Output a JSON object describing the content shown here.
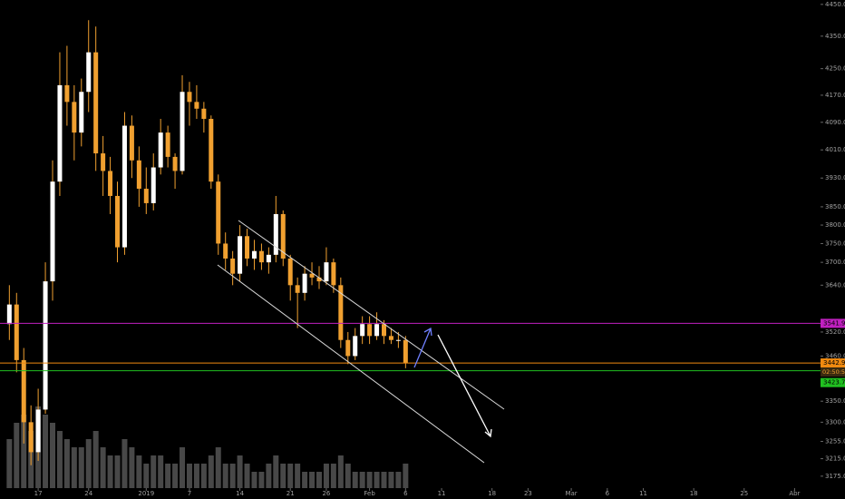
{
  "chart_data": {
    "type": "candlestick",
    "log_scale": true,
    "ylim": [
      3148,
      4464
    ],
    "yticks": [
      {
        "value": 4450,
        "label": "4450.0"
      },
      {
        "value": 4350,
        "label": "4350.0"
      },
      {
        "value": 4250,
        "label": "4250.0"
      },
      {
        "value": 4170,
        "label": "4170.0"
      },
      {
        "value": 4090,
        "label": "4090.0"
      },
      {
        "value": 4010,
        "label": "4010.0"
      },
      {
        "value": 3930,
        "label": "3930.0"
      },
      {
        "value": 3850,
        "label": "3850.0"
      },
      {
        "value": 3800,
        "label": "3800.0"
      },
      {
        "value": 3750,
        "label": "3750.0"
      },
      {
        "value": 3700,
        "label": "3700.0"
      },
      {
        "value": 3640,
        "label": "3640.0"
      },
      {
        "value": 3520,
        "label": "3520.0"
      },
      {
        "value": 3460,
        "label": "3460.0"
      },
      {
        "value": 3350,
        "label": "3350.0"
      },
      {
        "value": 3300,
        "label": "3300.0"
      },
      {
        "value": 3255,
        "label": "3255.0"
      },
      {
        "value": 3215,
        "label": "3215.0"
      },
      {
        "value": 3175,
        "label": "3175.0"
      }
    ],
    "xlim": [
      -5.3,
      108.6
    ],
    "xticks": [
      {
        "value": 0,
        "label": "17"
      },
      {
        "value": 7,
        "label": "24"
      },
      {
        "value": 15,
        "label": "2019"
      },
      {
        "value": 21,
        "label": "7"
      },
      {
        "value": 28,
        "label": "14"
      },
      {
        "value": 35,
        "label": "21"
      },
      {
        "value": 40,
        "label": "26"
      },
      {
        "value": 46,
        "label": "Feb"
      },
      {
        "value": 51,
        "label": "6"
      },
      {
        "value": 56,
        "label": "11"
      },
      {
        "value": 63,
        "label": "18"
      },
      {
        "value": 68,
        "label": "23"
      },
      {
        "value": 74,
        "label": "Mar"
      },
      {
        "value": 79,
        "label": "6"
      },
      {
        "value": 84,
        "label": "11"
      },
      {
        "value": 91,
        "label": "18"
      },
      {
        "value": 98,
        "label": "25"
      },
      {
        "value": 105,
        "label": "Abr"
      }
    ],
    "up_color": "#ffffff",
    "down_color": "#f0a030",
    "x": [
      -4,
      -3,
      -2,
      -1,
      0,
      1,
      2,
      3,
      4,
      5,
      6,
      7,
      8,
      9,
      10,
      11,
      12,
      13,
      14,
      15,
      16,
      17,
      18,
      19,
      20,
      21,
      22,
      23,
      24,
      25,
      26,
      27,
      28,
      29,
      30,
      31,
      32,
      33,
      34,
      35,
      36,
      37,
      38,
      39,
      40,
      41,
      42,
      43,
      44,
      45,
      46,
      47,
      48,
      49,
      50,
      51
    ],
    "open": [
      3540,
      3590,
      3450,
      3300,
      3230,
      3330,
      3650,
      3920,
      4200,
      4150,
      4060,
      4180,
      4300,
      4000,
      3950,
      3880,
      3740,
      4080,
      3980,
      3900,
      3860,
      3960,
      4060,
      3990,
      3950,
      4180,
      4150,
      4130,
      4100,
      3920,
      3750,
      3710,
      3670,
      3770,
      3710,
      3730,
      3700,
      3720,
      3830,
      3710,
      3640,
      3620,
      3670,
      3660,
      3650,
      3700,
      3640,
      3500,
      3460,
      3510,
      3540,
      3510,
      3540,
      3510,
      3500,
      3500
    ],
    "high": [
      3640,
      3620,
      3480,
      3340,
      3380,
      3700,
      3980,
      4300,
      4320,
      4200,
      4220,
      4400,
      4380,
      4050,
      3990,
      3920,
      4120,
      4110,
      4020,
      3960,
      4000,
      4100,
      4080,
      4000,
      4230,
      4210,
      4200,
      4150,
      4110,
      3940,
      3780,
      3730,
      3800,
      3790,
      3760,
      3750,
      3740,
      3880,
      3840,
      3720,
      3660,
      3690,
      3700,
      3690,
      3740,
      3710,
      3660,
      3520,
      3530,
      3560,
      3560,
      3570,
      3550,
      3530,
      3520,
      3510
    ],
    "low": [
      3500,
      3420,
      3250,
      3200,
      3210,
      3320,
      3600,
      3880,
      4080,
      3980,
      4020,
      4120,
      3950,
      3880,
      3830,
      3700,
      3720,
      3930,
      3850,
      3830,
      3840,
      3940,
      3960,
      3900,
      3940,
      4080,
      4100,
      4060,
      3900,
      3720,
      3680,
      3640,
      3650,
      3690,
      3680,
      3680,
      3670,
      3700,
      3690,
      3600,
      3530,
      3600,
      3640,
      3630,
      3640,
      3620,
      3480,
      3440,
      3450,
      3490,
      3490,
      3500,
      3490,
      3490,
      3480,
      3430
    ],
    "close": [
      3590,
      3450,
      3300,
      3230,
      3330,
      3650,
      3920,
      4200,
      4150,
      4060,
      4180,
      4300,
      4000,
      3950,
      3880,
      3740,
      4080,
      3980,
      3900,
      3860,
      3960,
      4060,
      3990,
      3950,
      4180,
      4150,
      4130,
      4100,
      3920,
      3750,
      3710,
      3670,
      3770,
      3710,
      3730,
      3700,
      3720,
      3830,
      3710,
      3640,
      3620,
      3670,
      3660,
      3650,
      3700,
      3640,
      3500,
      3460,
      3510,
      3540,
      3510,
      3540,
      3510,
      3500,
      3500,
      3442.9
    ],
    "volume": [
      6,
      8,
      9,
      7,
      10,
      9,
      8,
      7,
      6,
      5,
      5,
      6,
      7,
      5,
      4,
      4,
      6,
      5,
      4,
      3,
      4,
      4,
      3,
      3,
      5,
      3,
      3,
      3,
      4,
      5,
      3,
      3,
      4,
      3,
      2,
      2,
      3,
      4,
      3,
      3,
      3,
      2,
      2,
      2,
      3,
      3,
      4,
      3,
      2,
      2,
      2,
      2,
      2,
      2,
      2,
      3
    ],
    "volume_color": "#5a5a5a",
    "price_lines": [
      {
        "value": 3541.9,
        "color": "#c020c0"
      },
      {
        "value": 3442.9,
        "color": "#f08a10"
      },
      {
        "value": 3423.7,
        "color": "#20c020"
      }
    ],
    "countdown": "02:50:58"
  }
}
